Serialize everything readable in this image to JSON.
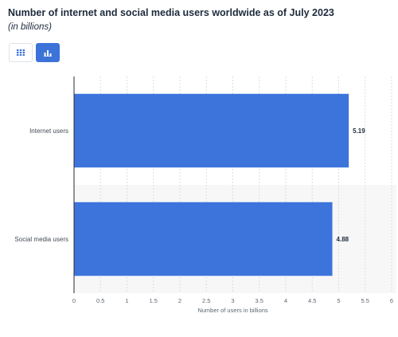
{
  "header": {
    "title": "Number of internet and social media users worldwide as of July 2023",
    "subtitle": "(in billions)"
  },
  "toolbar": {
    "table_view_icon": "grid-icon",
    "chart_view_icon": "bar-chart-icon"
  },
  "colors": {
    "bar": "#3c74db",
    "accent": "#3b73d9",
    "band": "#f7f7f7",
    "grid": "#d9dde2"
  },
  "chart_data": {
    "type": "bar",
    "orientation": "horizontal",
    "categories": [
      "Internet users",
      "Social media users"
    ],
    "values": [
      5.19,
      4.88
    ],
    "value_labels": [
      "5.19",
      "4.88"
    ],
    "xlabel": "Number of users in billions",
    "ylabel": "",
    "xlim": [
      0,
      6
    ],
    "xticks": [
      "0",
      "0.5",
      "1",
      "1.5",
      "2",
      "2.5",
      "3",
      "3.5",
      "4",
      "4.5",
      "5",
      "5.5",
      "6"
    ],
    "grid": true
  }
}
